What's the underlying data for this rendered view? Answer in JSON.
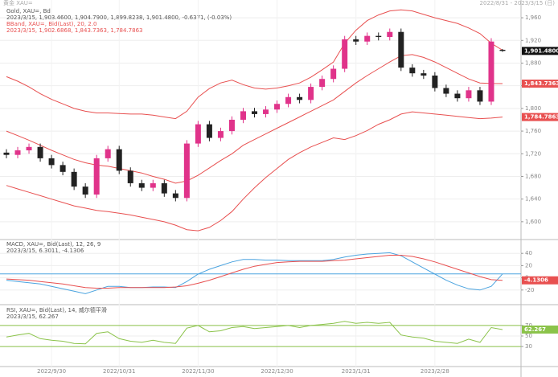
{
  "page_header": {
    "left": "黄金 XAU=",
    "right": "2022/8/31 - 2023/3/15 (日)"
  },
  "chart_data": [
    {
      "type": "candlestick",
      "title": "Gold, XAU=, Bd",
      "subtitle": "2023/3/15, 1,903.4600, 1,904.7900, 1,899.8238, 1,901.4800, -0.6371, (-0.03%)",
      "categories": [
        null,
        null,
        null,
        null,
        "2022/9/30",
        null,
        null,
        null,
        null,
        null,
        "2022/10/31",
        null,
        null,
        null,
        null,
        null,
        null,
        "2022/11/30",
        null,
        null,
        null,
        null,
        null,
        null,
        "2022/12/30",
        null,
        null,
        null,
        null,
        null,
        null,
        "2023/1/31",
        null,
        null,
        null,
        null,
        null,
        null,
        "2023/2/28",
        null,
        null,
        null,
        null,
        null,
        null
      ],
      "open": [
        1722,
        1718,
        1726,
        1732,
        1712,
        1700,
        1688,
        1662,
        1648,
        1712,
        1728,
        1690,
        1668,
        1660,
        1668,
        1650,
        1642,
        1738,
        1772,
        1748,
        1760,
        1780,
        1795,
        1790,
        1798,
        1808,
        1820,
        1815,
        1838,
        1852,
        1870,
        1922,
        1918,
        1928,
        1926,
        1935,
        1872,
        1862,
        1858,
        1836,
        1826,
        1818,
        1832,
        1812,
        1903.46
      ],
      "high": [
        1728,
        1732,
        1738,
        1738,
        1718,
        1706,
        1694,
        1668,
        1718,
        1734,
        1734,
        1696,
        1674,
        1674,
        1674,
        1656,
        1744,
        1778,
        1778,
        1766,
        1786,
        1801,
        1801,
        1804,
        1814,
        1826,
        1826,
        1844,
        1858,
        1876,
        1928,
        1928,
        1934,
        1934,
        1941,
        1941,
        1878,
        1868,
        1864,
        1842,
        1832,
        1838,
        1838,
        1924,
        1904.79
      ],
      "low": [
        1712,
        1712,
        1720,
        1706,
        1694,
        1682,
        1656,
        1642,
        1642,
        1706,
        1684,
        1662,
        1654,
        1654,
        1644,
        1636,
        1636,
        1732,
        1742,
        1742,
        1754,
        1774,
        1784,
        1784,
        1792,
        1802,
        1809,
        1809,
        1832,
        1846,
        1864,
        1912,
        1912,
        1920,
        1920,
        1866,
        1856,
        1852,
        1830,
        1820,
        1812,
        1812,
        1806,
        1806,
        1899.8238
      ],
      "close": [
        1718,
        1726,
        1732,
        1712,
        1700,
        1688,
        1662,
        1648,
        1712,
        1728,
        1690,
        1668,
        1660,
        1668,
        1650,
        1642,
        1738,
        1772,
        1748,
        1760,
        1780,
        1795,
        1790,
        1798,
        1808,
        1820,
        1815,
        1838,
        1852,
        1870,
        1922,
        1918,
        1928,
        1926,
        1935,
        1872,
        1862,
        1858,
        1836,
        1826,
        1818,
        1832,
        1812,
        1918,
        1901.48
      ],
      "close_labels": [
        null,
        null,
        null,
        null,
        null,
        null,
        null,
        null,
        null,
        null,
        null,
        null,
        null,
        null,
        null,
        null,
        null,
        null,
        null,
        null,
        null,
        null,
        null,
        null,
        null,
        null,
        null,
        null,
        null,
        null,
        null,
        null,
        null,
        null,
        null,
        null,
        null,
        null,
        null,
        null,
        null,
        null,
        null,
        null,
        "1,901.4800"
      ],
      "up_color": "#e0338a",
      "down_color": "#222222",
      "bands": {
        "title": "BBand, XAU=, Bid(Last), 20, 2.0",
        "subtitle": "2023/3/15, 1,902.6868, 1,843.7363, 1,784.7863",
        "color": "#e85050",
        "series": [
          {
            "values": [
              1856,
              1848,
              1838,
              1826,
              1816,
              1808,
              1800,
              1795,
              1792,
              1792,
              1791,
              1790,
              1790,
              1788,
              1785,
              1782,
              1795,
              1820,
              1835,
              1845,
              1850,
              1842,
              1836,
              1834,
              1836,
              1840,
              1845,
              1855,
              1868,
              1882,
              1915,
              1938,
              1955,
              1965,
              1972,
              1974,
              1972,
              1966,
              1960,
              1955,
              1950,
              1942,
              1932,
              1915,
              1902.6868
            ],
            "value_labels": [
              null,
              null,
              null,
              null,
              null,
              null,
              null,
              null,
              null,
              null,
              null,
              null,
              null,
              null,
              null,
              null,
              null,
              null,
              null,
              null,
              null,
              null,
              null,
              null,
              null,
              null,
              null,
              null,
              null,
              null,
              null,
              null,
              null,
              null,
              null,
              null,
              null,
              null,
              null,
              null,
              null,
              null,
              null,
              null,
              null
            ]
          },
          {
            "values": [
              1760,
              1752,
              1744,
              1735,
              1726,
              1718,
              1710,
              1704,
              1700,
              1698,
              1694,
              1690,
              1686,
              1680,
              1675,
              1668,
              1672,
              1682,
              1695,
              1708,
              1720,
              1735,
              1745,
              1755,
              1765,
              1775,
              1785,
              1795,
              1805,
              1815,
              1830,
              1845,
              1858,
              1870,
              1882,
              1893,
              1895,
              1890,
              1882,
              1872,
              1862,
              1852,
              1845,
              1844,
              1843.7363
            ],
            "value_labels": [
              null,
              null,
              null,
              null,
              null,
              null,
              null,
              null,
              null,
              null,
              null,
              null,
              null,
              null,
              null,
              null,
              null,
              null,
              null,
              null,
              null,
              null,
              null,
              null,
              null,
              null,
              null,
              null,
              null,
              null,
              null,
              null,
              null,
              null,
              null,
              null,
              null,
              null,
              null,
              null,
              null,
              null,
              null,
              null,
              "1,843.7363"
            ]
          },
          {
            "values": [
              1664,
              1658,
              1652,
              1646,
              1640,
              1634,
              1628,
              1624,
              1620,
              1618,
              1615,
              1612,
              1608,
              1604,
              1600,
              1594,
              1586,
              1584,
              1590,
              1602,
              1618,
              1640,
              1660,
              1678,
              1694,
              1710,
              1722,
              1732,
              1740,
              1748,
              1745,
              1752,
              1761,
              1772,
              1780,
              1790,
              1794,
              1792,
              1790,
              1788,
              1786,
              1784,
              1782,
              1783,
              1784.7863
            ],
            "value_labels": [
              null,
              null,
              null,
              null,
              null,
              null,
              null,
              null,
              null,
              null,
              null,
              null,
              null,
              null,
              null,
              null,
              null,
              null,
              null,
              null,
              null,
              null,
              null,
              null,
              null,
              null,
              null,
              null,
              null,
              null,
              null,
              null,
              null,
              null,
              null,
              null,
              null,
              null,
              null,
              null,
              null,
              null,
              null,
              null,
              "1,784.7863"
            ]
          }
        ]
      },
      "ylim": [
        1570,
        1980
      ],
      "yticks": [
        {
          "value": 1600,
          "label": "1,600"
        },
        {
          "value": 1640,
          "label": "1,640"
        },
        {
          "value": 1680,
          "label": "1,680"
        },
        {
          "value": 1720,
          "label": "1,720"
        },
        {
          "value": 1760,
          "label": "1,760"
        },
        {
          "value": 1800,
          "label": "1,800"
        },
        {
          "value": 1840,
          "label": "1,840"
        },
        {
          "value": 1880,
          "label": "1,880"
        },
        {
          "value": 1920,
          "label": "1,920"
        },
        {
          "value": 1960,
          "label": "1,960"
        }
      ],
      "grid": true
    },
    {
      "type": "line",
      "title": "MACD, XAU=, Bid(Last), 12, 26, 9",
      "subtitle": "2023/3/15, 6.3011, -4.1306",
      "series": [
        {
          "color": "#4aa3df",
          "values": [
            -4,
            -6,
            -8,
            -10,
            -14,
            -18,
            -22,
            -26,
            -20,
            -14,
            -14,
            -16,
            -16,
            -15,
            -15,
            -16,
            -6,
            6,
            14,
            20,
            26,
            30,
            30,
            29,
            29,
            28,
            28,
            28,
            28,
            30,
            34,
            37,
            39,
            40,
            41,
            36,
            26,
            16,
            6,
            -4,
            -12,
            -18,
            -20,
            -14,
            6.3011
          ],
          "value_labels": [
            null,
            null,
            null,
            null,
            null,
            null,
            null,
            null,
            null,
            null,
            null,
            null,
            null,
            null,
            null,
            null,
            null,
            null,
            null,
            null,
            null,
            null,
            null,
            null,
            null,
            null,
            null,
            null,
            null,
            null,
            null,
            null,
            null,
            null,
            null,
            null,
            null,
            null,
            null,
            null,
            null,
            null,
            null,
            null,
            null
          ],
          "mark_line": true
        },
        {
          "color": "#e85050",
          "values": [
            -2,
            -3,
            -4,
            -6,
            -8,
            -10,
            -13,
            -16,
            -17,
            -17,
            -16,
            -16,
            -16,
            -16,
            -16,
            -15,
            -13,
            -9,
            -4,
            2,
            8,
            14,
            19,
            22,
            25,
            26,
            27,
            27,
            27,
            28,
            29,
            31,
            33,
            35,
            37,
            37,
            35,
            31,
            26,
            20,
            14,
            8,
            2,
            -3,
            -4.1306
          ],
          "value_labels": [
            null,
            null,
            null,
            null,
            null,
            null,
            null,
            null,
            null,
            null,
            null,
            null,
            null,
            null,
            null,
            null,
            null,
            null,
            null,
            null,
            null,
            null,
            null,
            null,
            null,
            null,
            null,
            null,
            null,
            null,
            null,
            null,
            null,
            null,
            null,
            null,
            null,
            null,
            null,
            null,
            null,
            null,
            null,
            null,
            "-4.1306"
          ],
          "mark_line": false
        }
      ],
      "ylim": [
        -40,
        60
      ],
      "yticks": [
        -20,
        0,
        20,
        40
      ],
      "grid": true
    },
    {
      "type": "line",
      "title": "RSI, XAU=, Bid(Last), 14, 威尔德平滑",
      "subtitle": "2023/3/15, 62.267",
      "series": [
        {
          "color": "#8bc34a",
          "values": [
            48,
            52,
            55,
            45,
            42,
            40,
            36,
            35,
            55,
            58,
            45,
            40,
            38,
            42,
            38,
            36,
            65,
            70,
            58,
            60,
            66,
            68,
            64,
            66,
            68,
            70,
            66,
            70,
            72,
            74,
            78,
            74,
            76,
            74,
            76,
            52,
            48,
            46,
            40,
            38,
            36,
            44,
            38,
            66,
            62.267
          ],
          "value_labels": [
            null,
            null,
            null,
            null,
            null,
            null,
            null,
            null,
            null,
            null,
            null,
            null,
            null,
            null,
            null,
            null,
            null,
            null,
            null,
            null,
            null,
            null,
            null,
            null,
            null,
            null,
            null,
            null,
            null,
            null,
            null,
            null,
            null,
            null,
            null,
            null,
            null,
            null,
            null,
            null,
            null,
            null,
            null,
            null,
            "62.267"
          ],
          "mark_line": false
        }
      ],
      "levels": [
        70,
        30
      ],
      "level_color": "#8bc34a",
      "ylim": [
        -5,
        105
      ],
      "yticks": [
        30,
        50,
        70
      ],
      "grid": true
    }
  ]
}
